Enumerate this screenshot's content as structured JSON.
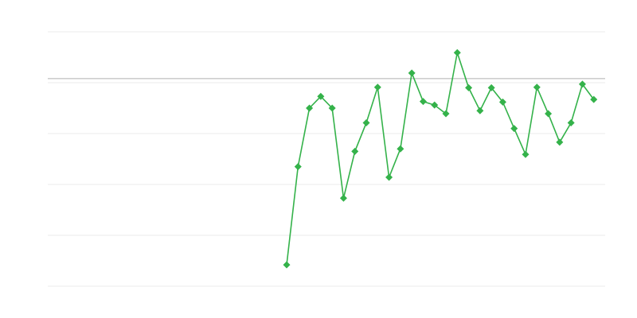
{
  "chart_data": {
    "type": "line",
    "title": "",
    "xlabel": "",
    "ylabel": "",
    "x": [
      21,
      22,
      23,
      24,
      25,
      26,
      27,
      28,
      29,
      30,
      31,
      32,
      33,
      34,
      35,
      36,
      37,
      38,
      39,
      40,
      41,
      42,
      43,
      44,
      45,
      46,
      47,
      48
    ],
    "xlim": [
      0,
      49
    ],
    "ylim": [
      0,
      5
    ],
    "y_gridlines": [
      0,
      1,
      2,
      3,
      4,
      5
    ],
    "reference_line": 4.08,
    "grid": true,
    "legend": "none",
    "series": [
      {
        "values": [
          0.42,
          2.35,
          3.5,
          3.73,
          3.5,
          1.73,
          2.65,
          3.21,
          3.91,
          2.14,
          2.7,
          4.19,
          3.63,
          3.56,
          3.39,
          4.59,
          3.9,
          3.45,
          3.9,
          3.62,
          3.1,
          2.59,
          3.91,
          3.39,
          2.83,
          3.21,
          3.97,
          3.67
        ],
        "color": "#34b24a",
        "marker": "diamond"
      }
    ],
    "colors": {
      "grid": "#ebebeb",
      "reference": "#b0b0b0"
    }
  }
}
